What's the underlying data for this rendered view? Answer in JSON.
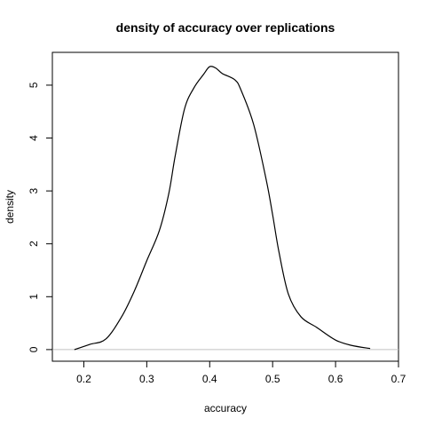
{
  "chart_data": {
    "type": "line",
    "title": "density of accuracy over replications",
    "xlabel": "accuracy",
    "ylabel": "density",
    "xlim": [
      0.15,
      0.7
    ],
    "ylim": [
      -0.22,
      5.62
    ],
    "x_ticks": [
      0.2,
      0.3,
      0.4,
      0.5,
      0.6,
      0.7
    ],
    "x_tick_labels": [
      "0.2",
      "0.3",
      "0.4",
      "0.5",
      "0.6",
      "0.7"
    ],
    "y_ticks": [
      0,
      1,
      2,
      3,
      4,
      5
    ],
    "y_tick_labels": [
      "0",
      "1",
      "2",
      "3",
      "4",
      "5"
    ],
    "grid": false,
    "baseline": {
      "y": 0,
      "color": "#c0c0c0"
    },
    "series": [
      {
        "color": "#000000",
        "x": [
          0.185,
          0.21,
          0.235,
          0.26,
          0.28,
          0.3,
          0.32,
          0.335,
          0.345,
          0.36,
          0.375,
          0.39,
          0.4,
          0.41,
          0.42,
          0.44,
          0.45,
          0.47,
          0.49,
          0.5,
          0.51,
          0.525,
          0.545,
          0.57,
          0.6,
          0.625,
          0.655
        ],
        "y": [
          0.0,
          0.1,
          0.2,
          0.62,
          1.1,
          1.68,
          2.25,
          2.95,
          3.65,
          4.55,
          4.95,
          5.2,
          5.35,
          5.32,
          5.22,
          5.1,
          4.9,
          4.25,
          3.2,
          2.55,
          1.85,
          1.05,
          0.62,
          0.42,
          0.18,
          0.08,
          0.02
        ]
      }
    ]
  }
}
